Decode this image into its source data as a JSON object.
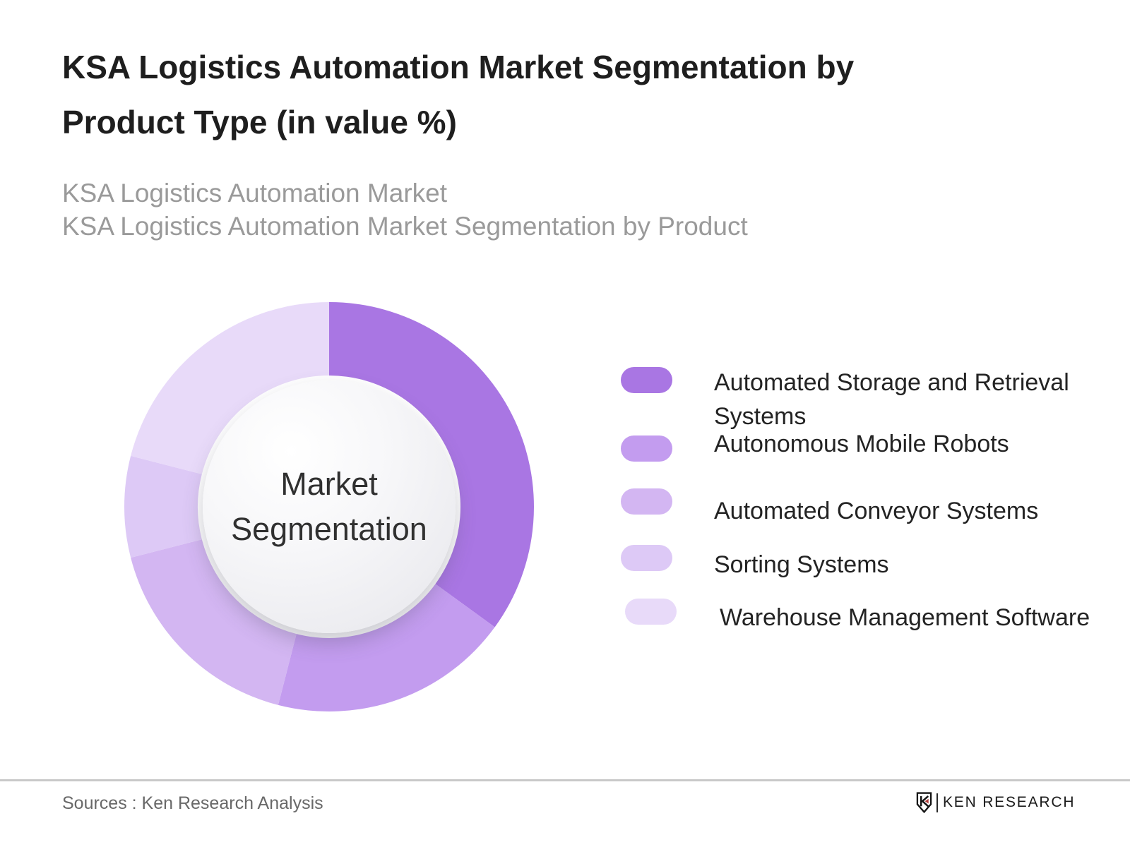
{
  "header": {
    "title": "KSA Logistics Automation Market Segmentation by Product Type (in value %)",
    "subtitle_line1": "KSA Logistics Automation Market",
    "subtitle_line2": "KSA Logistics Automation Market Segmentation by Product"
  },
  "chart_data": {
    "type": "donut",
    "center_label": "Market Segmentation",
    "start_angle_deg": 0,
    "direction": "clockwise",
    "legend_position": "right",
    "segments": [
      {
        "label": "Automated Storage and Retrieval Systems",
        "value_pct": 35,
        "color": "#a976e3"
      },
      {
        "label": "Autonomous Mobile Robots",
        "value_pct": 19,
        "color": "#c39cef"
      },
      {
        "label": "Automated Conveyor Systems",
        "value_pct": 17,
        "color": "#d3b6f2"
      },
      {
        "label": "Sorting Systems",
        "value_pct": 8,
        "color": "#ddc9f6"
      },
      {
        "label": "Warehouse Management Software",
        "value_pct": 21,
        "color": "#e8daf9"
      }
    ]
  },
  "footer": {
    "source_text": "Sources : Ken Research Analysis",
    "logo_text": "KEN RESEARCH",
    "logo_mark": "K-shield-icon",
    "logo_accent_color": "#b5413f"
  }
}
